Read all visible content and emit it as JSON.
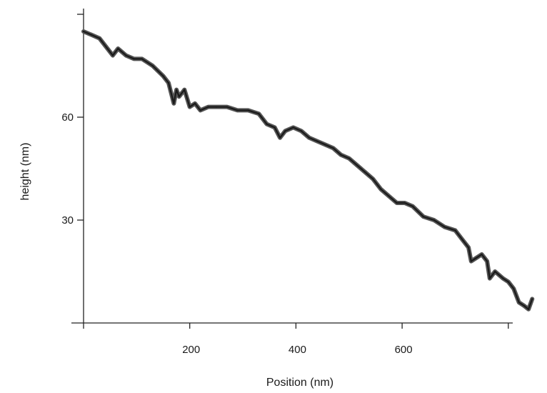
{
  "chart_data": {
    "type": "line",
    "xlabel": "Position (nm)",
    "ylabel": "height (nm)",
    "xlim": [
      0,
      850
    ],
    "ylim": [
      0,
      90
    ],
    "x_ticks": [
      200,
      400,
      600,
      800
    ],
    "x_tick_labels": [
      "200",
      "400",
      "600",
      ""
    ],
    "y_ticks": [
      30,
      60,
      90
    ],
    "y_tick_labels": [
      "30",
      "60",
      ""
    ],
    "grid": false,
    "legend": "none",
    "line_color": "#1a1a1a",
    "band_color": "#555555",
    "series": [
      {
        "x": [
          0,
          15,
          30,
          45,
          55,
          65,
          80,
          95,
          110,
          130,
          150,
          160,
          170,
          175,
          180,
          190,
          200,
          210,
          220,
          235,
          250,
          270,
          290,
          310,
          330,
          345,
          360,
          370,
          380,
          395,
          410,
          425,
          440,
          455,
          470,
          485,
          500,
          515,
          530,
          545,
          560,
          575,
          590,
          605,
          620,
          640,
          660,
          680,
          700,
          715,
          725,
          730,
          740,
          750,
          760,
          765,
          775,
          790,
          800,
          810,
          820,
          830,
          838,
          845
        ],
        "y": [
          85,
          84,
          83,
          80,
          78,
          80,
          78,
          77,
          77,
          75,
          72,
          70,
          64,
          68,
          66,
          68,
          63,
          64,
          62,
          63,
          63,
          63,
          62,
          62,
          61,
          58,
          57,
          54,
          56,
          57,
          56,
          54,
          53,
          52,
          51,
          49,
          48,
          46,
          44,
          42,
          39,
          37,
          35,
          35,
          34,
          31,
          30,
          28,
          27,
          24,
          22,
          18,
          19,
          20,
          18,
          13,
          15,
          13,
          12,
          10,
          6,
          5,
          4,
          7
        ]
      }
    ]
  }
}
